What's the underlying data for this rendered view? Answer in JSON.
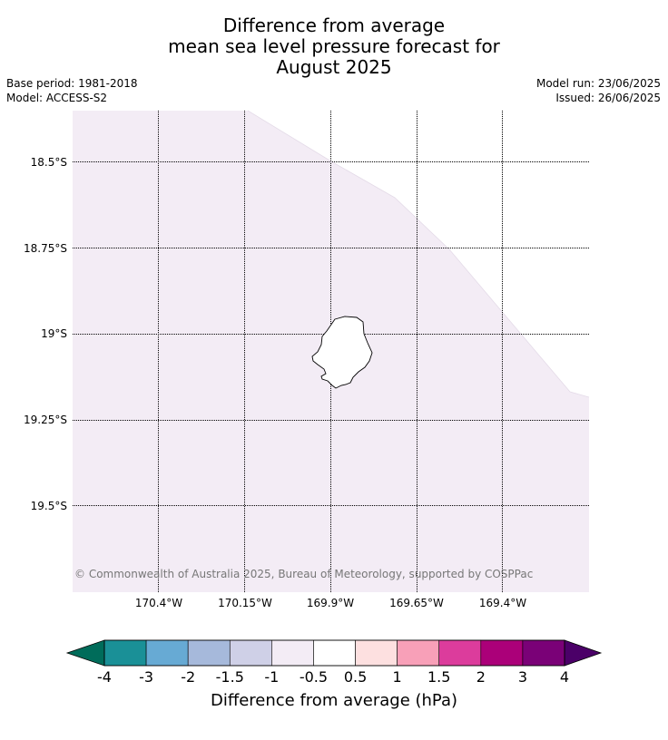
{
  "title": {
    "line1": "Difference from average",
    "line2": "mean sea level pressure forecast for",
    "line3": "August 2025"
  },
  "meta_left": {
    "base_period": "Base period: 1981-2018",
    "model": "Model: ACCESS-S2"
  },
  "meta_right": {
    "model_run": "Model run: 23/06/2025",
    "issued": "Issued: 26/06/2025"
  },
  "map": {
    "lat_labels": [
      "18.5°S",
      "18.75°S",
      "19°S",
      "19.25°S",
      "19.5°S"
    ],
    "lon_labels": [
      "170.4°W",
      "170.15°W",
      "169.9°W",
      "169.65°W",
      "169.4°W"
    ],
    "copyright": "© Commonwealth of Australia 2025, Bureau of Meteorology, supported by COSPPac",
    "field_value_class": "-1 to -0.5",
    "field_color": "#f3ecf5",
    "island_name_shown": false
  },
  "colorbar": {
    "label": "Difference from average (hPa)",
    "ticks": [
      "-4",
      "-3",
      "-2",
      "-1.5",
      "-1",
      "-0.5",
      "0.5",
      "1",
      "1.5",
      "2",
      "3",
      "4"
    ],
    "colors": [
      "#1a9097",
      "#67aad4",
      "#a6b9db",
      "#cfd0e7",
      "#f3ecf5",
      "#ffffff",
      "#fde0e0",
      "#f8a0b8",
      "#dc3c9c",
      "#ab0079",
      "#7a0177"
    ],
    "under_color": "#006c5a",
    "over_color": "#4b0068"
  }
}
